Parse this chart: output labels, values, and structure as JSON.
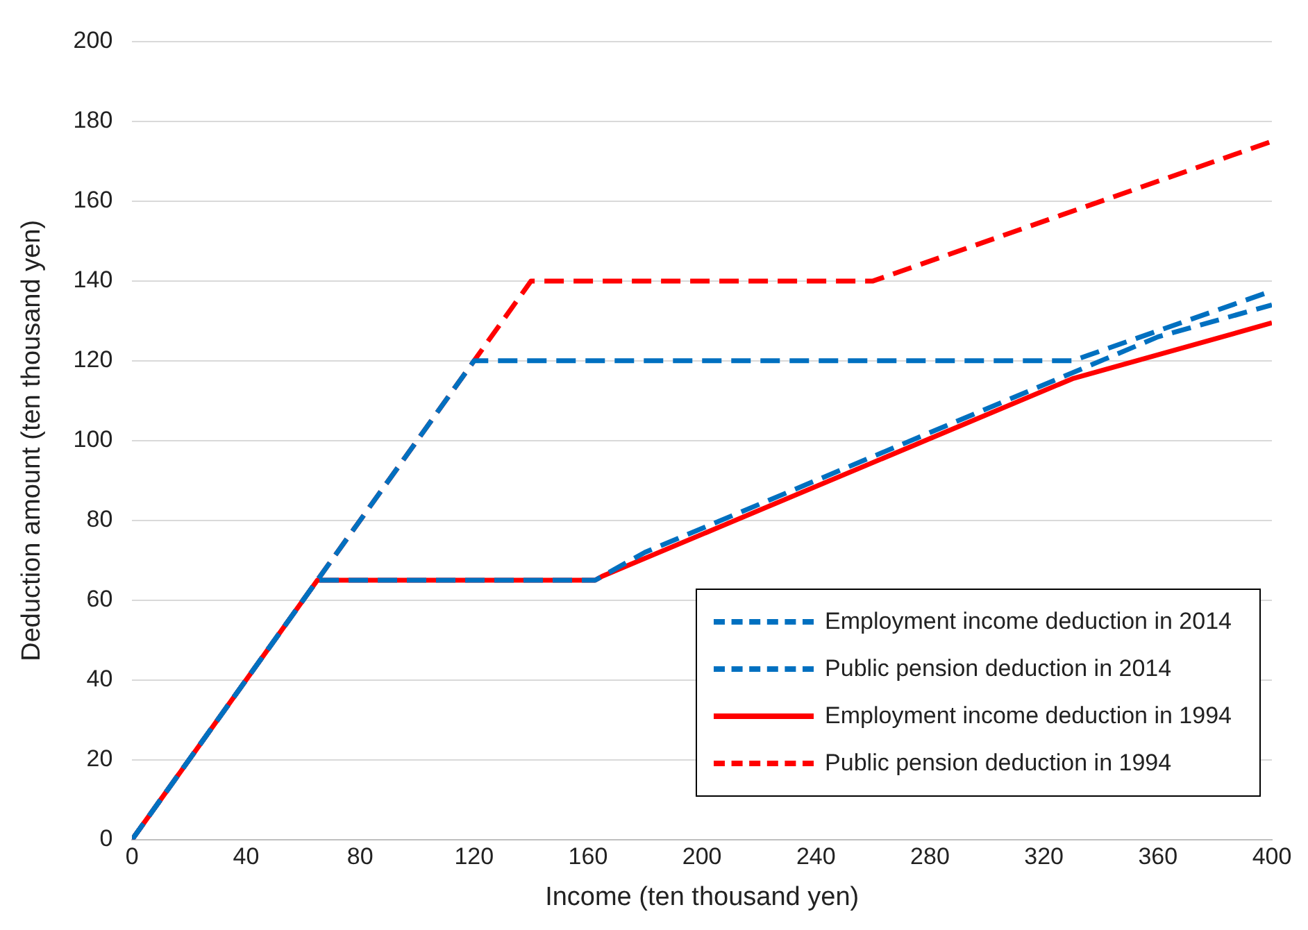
{
  "chart_data": {
    "type": "line",
    "xlabel": "Income (ten thousand yen)",
    "ylabel": "Deduction amount (ten thousand yen)",
    "xlim": [
      0,
      400
    ],
    "xticks": [
      0,
      40,
      80,
      120,
      160,
      200,
      240,
      280,
      320,
      360,
      400
    ],
    "ylim": [
      0,
      200
    ],
    "yticks": [
      0,
      20,
      40,
      60,
      80,
      100,
      120,
      140,
      160,
      180,
      200
    ],
    "grid": "y",
    "legend": "bottom right",
    "marker": "none",
    "series": [
      {
        "name": "Employment income deduction in 2014",
        "color": "#0070c0",
        "line_style": "dashed",
        "x": [
          0,
          65,
          162.5,
          180,
          360,
          400
        ],
        "values": [
          0,
          65,
          65,
          72,
          126,
          134
        ]
      },
      {
        "name": "Public pension deduction in 2014",
        "color": "#0070c0",
        "line_style": "dashed",
        "x": [
          0,
          120,
          330,
          400
        ],
        "values": [
          0,
          120,
          120,
          137.5
        ]
      },
      {
        "name": "Employment income deduction in 1994",
        "color": "#ff0000",
        "line_style": "solid",
        "x": [
          0,
          65,
          162.5,
          165,
          330,
          400
        ],
        "values": [
          0,
          65,
          65,
          66,
          115.5,
          129.5
        ]
      },
      {
        "name": "Public pension deduction in 1994",
        "color": "#ff0000",
        "line_style": "dashed",
        "x": [
          0,
          140,
          260,
          400
        ],
        "values": [
          0,
          140,
          140,
          175
        ]
      }
    ]
  }
}
